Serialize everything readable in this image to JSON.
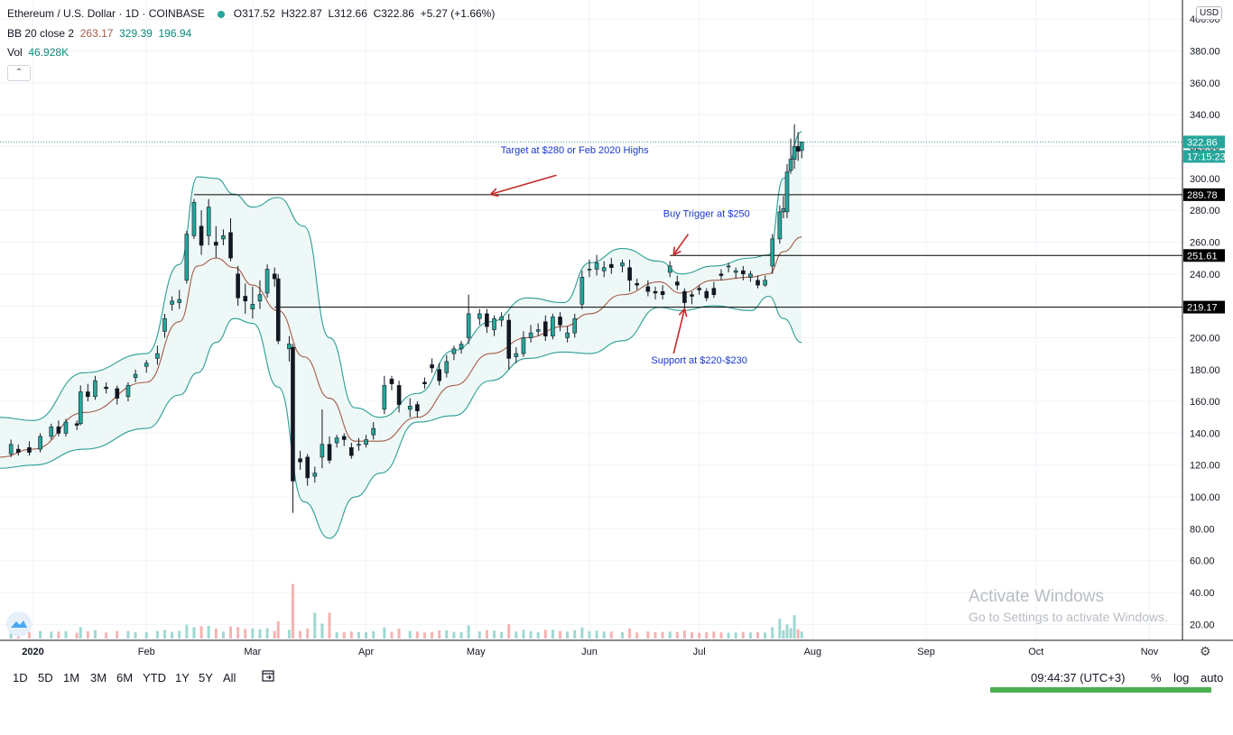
{
  "legend": {
    "symbol": "Ethereum / U.S. Dollar · 1D · COINBASE",
    "open": "O317.52",
    "high": "H322.87",
    "low": "L312.66",
    "close": "C322.86",
    "change": "+5.27 (+1.66%)",
    "bb_label": "BB 20 close 2",
    "bb_values": [
      "263.17",
      "329.39",
      "196.94"
    ],
    "vol_label": "Vol",
    "vol_value": "46.928K"
  },
  "currency_button": "USD",
  "price_axis_ticks": [
    "20.00",
    "40.00",
    "60.00",
    "80.00",
    "100.00",
    "120.00",
    "140.00",
    "160.00",
    "180.00",
    "200.00",
    "220.00",
    "240.00",
    "260.00",
    "280.00",
    "300.00",
    "320.00",
    "340.00",
    "360.00",
    "380.00",
    "400.00"
  ],
  "time_axis_ticks": [
    "2020",
    "Feb",
    "Mar",
    "Apr",
    "May",
    "Jun",
    "Jul",
    "Aug",
    "Sep",
    "Oct",
    "Nov"
  ],
  "price_badges": [
    {
      "text": "322.86",
      "color": "#26a69a"
    },
    {
      "text": "17:15:23",
      "color": "#26a69a"
    },
    {
      "text": "289.78",
      "color": "#000000"
    },
    {
      "text": "251.61",
      "color": "#000000"
    },
    {
      "text": "219.17",
      "color": "#000000"
    }
  ],
  "annotations": [
    "Target at $280 or Feb 2020 Highs",
    "Buy Trigger at $250",
    "Support at $220-$230"
  ],
  "timeframes": [
    "1D",
    "5D",
    "1M",
    "3M",
    "6M",
    "YTD",
    "1Y",
    "5Y",
    "All"
  ],
  "clock": "09:44:37 (UTC+3)",
  "options": [
    "%",
    "log",
    "auto"
  ],
  "watermark": {
    "line1": "Activate Windows",
    "line2": "Go to Settings to activate Windows."
  },
  "colors": {
    "up": "#26a69a",
    "down": "#ef5350",
    "bb_band": "#2a9d94",
    "bb_basis": "#a65a4a",
    "bb_fill": "#eef8f7"
  },
  "chart_data": {
    "type": "candlestick",
    "title": "Ethereum / U.S. Dollar · 1D · COINBASE",
    "x_range": [
      "2019-12-23",
      "2020-11-10"
    ],
    "y_range": [
      10,
      412
    ],
    "horizontal_levels": [
      289.78,
      251.61,
      219.17
    ],
    "last_price": 322.86,
    "candles": [
      {
        "date": "2019-12-26",
        "open": 127,
        "close": 133,
        "high": 136,
        "low": 125
      },
      {
        "date": "2019-12-28",
        "open": 130,
        "close": 128,
        "high": 133,
        "low": 126
      },
      {
        "date": "2019-12-31",
        "open": 131,
        "close": 128,
        "high": 135,
        "low": 126
      },
      {
        "date": "2020-01-03",
        "open": 130,
        "close": 138,
        "high": 140,
        "low": 128
      },
      {
        "date": "2020-01-06",
        "open": 138,
        "close": 144,
        "high": 146,
        "low": 136
      },
      {
        "date": "2020-01-08",
        "open": 144,
        "close": 140,
        "high": 148,
        "low": 138
      },
      {
        "date": "2020-01-10",
        "open": 140,
        "close": 147,
        "high": 149,
        "low": 138
      },
      {
        "date": "2020-01-13",
        "open": 146,
        "close": 145,
        "high": 148,
        "low": 142
      },
      {
        "date": "2020-01-14",
        "open": 146,
        "close": 166,
        "high": 170,
        "low": 145
      },
      {
        "date": "2020-01-16",
        "open": 166,
        "close": 163,
        "high": 171,
        "low": 160
      },
      {
        "date": "2020-01-18",
        "open": 163,
        "close": 173,
        "high": 176,
        "low": 161
      },
      {
        "date": "2020-01-21",
        "open": 169,
        "close": 168,
        "high": 172,
        "low": 165
      },
      {
        "date": "2020-01-24",
        "open": 168,
        "close": 162,
        "high": 170,
        "low": 158
      },
      {
        "date": "2020-01-27",
        "open": 163,
        "close": 170,
        "high": 172,
        "low": 160
      },
      {
        "date": "2020-01-29",
        "open": 175,
        "close": 177,
        "high": 180,
        "low": 172
      },
      {
        "date": "2020-02-01",
        "open": 182,
        "close": 184,
        "high": 186,
        "low": 178
      },
      {
        "date": "2020-02-04",
        "open": 187,
        "close": 190,
        "high": 195,
        "low": 183
      },
      {
        "date": "2020-02-06",
        "open": 204,
        "close": 212,
        "high": 215,
        "low": 200
      },
      {
        "date": "2020-02-08",
        "open": 221,
        "close": 223,
        "high": 226,
        "low": 217
      },
      {
        "date": "2020-02-10",
        "open": 222,
        "close": 224,
        "high": 230,
        "low": 218
      },
      {
        "date": "2020-02-12",
        "open": 236,
        "close": 265,
        "high": 267,
        "low": 234
      },
      {
        "date": "2020-02-14",
        "open": 264,
        "close": 285,
        "high": 287,
        "low": 262
      },
      {
        "date": "2020-02-16",
        "open": 270,
        "close": 258,
        "high": 280,
        "low": 252
      },
      {
        "date": "2020-02-18",
        "open": 264,
        "close": 282,
        "high": 287,
        "low": 258
      },
      {
        "date": "2020-02-20",
        "open": 260,
        "close": 258,
        "high": 270,
        "low": 250
      },
      {
        "date": "2020-02-22",
        "open": 262,
        "close": 264,
        "high": 268,
        "low": 258
      },
      {
        "date": "2020-02-24",
        "open": 266,
        "close": 250,
        "high": 275,
        "low": 248
      },
      {
        "date": "2020-02-26",
        "open": 240,
        "close": 225,
        "high": 245,
        "low": 220
      },
      {
        "date": "2020-02-28",
        "open": 226,
        "close": 223,
        "high": 234,
        "low": 215
      },
      {
        "date": "2020-03-01",
        "open": 218,
        "close": 221,
        "high": 232,
        "low": 212
      },
      {
        "date": "2020-03-03",
        "open": 223,
        "close": 227,
        "high": 236,
        "low": 218
      },
      {
        "date": "2020-03-05",
        "open": 228,
        "close": 243,
        "high": 246,
        "low": 225
      },
      {
        "date": "2020-03-07",
        "open": 240,
        "close": 237,
        "high": 244,
        "low": 232
      },
      {
        "date": "2020-03-08",
        "open": 237,
        "close": 198,
        "high": 240,
        "low": 196
      },
      {
        "date": "2020-03-11",
        "open": 193,
        "close": 196,
        "high": 201,
        "low": 185
      },
      {
        "date": "2020-03-12",
        "open": 194,
        "close": 110,
        "high": 196,
        "low": 90
      },
      {
        "date": "2020-03-14",
        "open": 124,
        "close": 122,
        "high": 129,
        "low": 117
      },
      {
        "date": "2020-03-16",
        "open": 125,
        "close": 112,
        "high": 127,
        "low": 107
      },
      {
        "date": "2020-03-18",
        "open": 113,
        "close": 115,
        "high": 119,
        "low": 109
      },
      {
        "date": "2020-03-20",
        "open": 125,
        "close": 133,
        "high": 155,
        "low": 118
      },
      {
        "date": "2020-03-22",
        "open": 133,
        "close": 123,
        "high": 138,
        "low": 121
      },
      {
        "date": "2020-03-24",
        "open": 134,
        "close": 137,
        "high": 139,
        "low": 131
      },
      {
        "date": "2020-03-26",
        "open": 138,
        "close": 136,
        "high": 140,
        "low": 132
      },
      {
        "date": "2020-03-28",
        "open": 131,
        "close": 126,
        "high": 134,
        "low": 124
      },
      {
        "date": "2020-03-30",
        "open": 133,
        "close": 133,
        "high": 137,
        "low": 129
      },
      {
        "date": "2020-04-01",
        "open": 133,
        "close": 136,
        "high": 139,
        "low": 131
      },
      {
        "date": "2020-04-03",
        "open": 139,
        "close": 143,
        "high": 147,
        "low": 136
      },
      {
        "date": "2020-04-06",
        "open": 155,
        "close": 170,
        "high": 176,
        "low": 152
      },
      {
        "date": "2020-04-08",
        "open": 174,
        "close": 171,
        "high": 176,
        "low": 167
      },
      {
        "date": "2020-04-10",
        "open": 170,
        "close": 158,
        "high": 173,
        "low": 153
      },
      {
        "date": "2020-04-13",
        "open": 155,
        "close": 157,
        "high": 162,
        "low": 150
      },
      {
        "date": "2020-04-15",
        "open": 158,
        "close": 154,
        "high": 160,
        "low": 150
      },
      {
        "date": "2020-04-17",
        "open": 172,
        "close": 171,
        "high": 175,
        "low": 168
      },
      {
        "date": "2020-04-19",
        "open": 183,
        "close": 181,
        "high": 187,
        "low": 178
      },
      {
        "date": "2020-04-21",
        "open": 180,
        "close": 173,
        "high": 184,
        "low": 170
      },
      {
        "date": "2020-04-23",
        "open": 178,
        "close": 185,
        "high": 189,
        "low": 175
      },
      {
        "date": "2020-04-25",
        "open": 190,
        "close": 193,
        "high": 195,
        "low": 186
      },
      {
        "date": "2020-04-27",
        "open": 193,
        "close": 196,
        "high": 198,
        "low": 190
      },
      {
        "date": "2020-04-29",
        "open": 200,
        "close": 215,
        "high": 227,
        "low": 196
      },
      {
        "date": "2020-05-02",
        "open": 212,
        "close": 215,
        "high": 218,
        "low": 208
      },
      {
        "date": "2020-05-04",
        "open": 215,
        "close": 207,
        "high": 218,
        "low": 203
      },
      {
        "date": "2020-05-06",
        "open": 205,
        "close": 212,
        "high": 214,
        "low": 201
      },
      {
        "date": "2020-05-08",
        "open": 211,
        "close": 213,
        "high": 216,
        "low": 207
      },
      {
        "date": "2020-05-10",
        "open": 211,
        "close": 187,
        "high": 215,
        "low": 180
      },
      {
        "date": "2020-05-12",
        "open": 188,
        "close": 190,
        "high": 194,
        "low": 184
      },
      {
        "date": "2020-05-14",
        "open": 190,
        "close": 200,
        "high": 204,
        "low": 188
      },
      {
        "date": "2020-05-16",
        "open": 200,
        "close": 203,
        "high": 208,
        "low": 197
      },
      {
        "date": "2020-05-18",
        "open": 204,
        "close": 205,
        "high": 209,
        "low": 201
      },
      {
        "date": "2020-05-20",
        "open": 210,
        "close": 201,
        "high": 214,
        "low": 198
      },
      {
        "date": "2020-05-22",
        "open": 201,
        "close": 213,
        "high": 215,
        "low": 199
      },
      {
        "date": "2020-05-24",
        "open": 213,
        "close": 208,
        "high": 216,
        "low": 204
      },
      {
        "date": "2020-05-26",
        "open": 200,
        "close": 203,
        "high": 207,
        "low": 197
      },
      {
        "date": "2020-05-28",
        "open": 203,
        "close": 212,
        "high": 215,
        "low": 200
      },
      {
        "date": "2020-05-30",
        "open": 221,
        "close": 238,
        "high": 242,
        "low": 218
      },
      {
        "date": "2020-06-01",
        "open": 243,
        "close": 243,
        "high": 249,
        "low": 238
      },
      {
        "date": "2020-06-03",
        "open": 243,
        "close": 247,
        "high": 252,
        "low": 239
      },
      {
        "date": "2020-06-05",
        "open": 242,
        "close": 244,
        "high": 248,
        "low": 238
      },
      {
        "date": "2020-06-07",
        "open": 246,
        "close": 244,
        "high": 250,
        "low": 240
      },
      {
        "date": "2020-06-10",
        "open": 245,
        "close": 247,
        "high": 249,
        "low": 241
      },
      {
        "date": "2020-06-12",
        "open": 244,
        "close": 236,
        "high": 249,
        "low": 229
      },
      {
        "date": "2020-06-14",
        "open": 234,
        "close": 233,
        "high": 237,
        "low": 230
      },
      {
        "date": "2020-06-17",
        "open": 232,
        "close": 229,
        "high": 236,
        "low": 226
      },
      {
        "date": "2020-06-19",
        "open": 229,
        "close": 228,
        "high": 232,
        "low": 224
      },
      {
        "date": "2020-06-21",
        "open": 229,
        "close": 227,
        "high": 233,
        "low": 224
      },
      {
        "date": "2020-06-23",
        "open": 241,
        "close": 245,
        "high": 248,
        "low": 238
      },
      {
        "date": "2020-06-25",
        "open": 235,
        "close": 233,
        "high": 239,
        "low": 230
      },
      {
        "date": "2020-06-27",
        "open": 229,
        "close": 222,
        "high": 231,
        "low": 218
      },
      {
        "date": "2020-06-29",
        "open": 227,
        "close": 226,
        "high": 229,
        "low": 221
      },
      {
        "date": "2020-07-01",
        "open": 231,
        "close": 230,
        "high": 233,
        "low": 227
      },
      {
        "date": "2020-07-03",
        "open": 229,
        "close": 225,
        "high": 231,
        "low": 223
      },
      {
        "date": "2020-07-05",
        "open": 231,
        "close": 227,
        "high": 235,
        "low": 225
      },
      {
        "date": "2020-07-07",
        "open": 240,
        "close": 239,
        "high": 243,
        "low": 236
      },
      {
        "date": "2020-07-09",
        "open": 245,
        "close": 245,
        "high": 247,
        "low": 241
      },
      {
        "date": "2020-07-11",
        "open": 241,
        "close": 242,
        "high": 244,
        "low": 237
      },
      {
        "date": "2020-07-13",
        "open": 242,
        "close": 240,
        "high": 245,
        "low": 236
      },
      {
        "date": "2020-07-15",
        "open": 238,
        "close": 240,
        "high": 242,
        "low": 235
      },
      {
        "date": "2020-07-17",
        "open": 236,
        "close": 233,
        "high": 239,
        "low": 231
      },
      {
        "date": "2020-07-19",
        "open": 233,
        "close": 236,
        "high": 239,
        "low": 232
      },
      {
        "date": "2020-07-21",
        "open": 245,
        "close": 262,
        "high": 265,
        "low": 240
      },
      {
        "date": "2020-07-23",
        "open": 262,
        "close": 279,
        "high": 283,
        "low": 259
      },
      {
        "date": "2020-07-24",
        "open": 279,
        "close": 281,
        "high": 289,
        "low": 275
      },
      {
        "date": "2020-07-25",
        "open": 279,
        "close": 304,
        "high": 309,
        "low": 275
      },
      {
        "date": "2020-07-26",
        "open": 305,
        "close": 312,
        "high": 325,
        "low": 303
      },
      {
        "date": "2020-07-27",
        "open": 312,
        "close": 320,
        "high": 334,
        "low": 306
      },
      {
        "date": "2020-07-28",
        "open": 320,
        "close": 317,
        "high": 329,
        "low": 311
      },
      {
        "date": "2020-07-29",
        "open": 317.52,
        "close": 322.86,
        "high": 322.87,
        "low": 312.66
      }
    ],
    "bollinger": {
      "period": 20,
      "std": 2,
      "last": {
        "basis": 263.17,
        "upper": 329.39,
        "lower": 196.94
      },
      "dates": [
        "2019-12-23",
        "2020-01-01",
        "2020-01-15",
        "2020-02-01",
        "2020-02-10",
        "2020-02-15",
        "2020-02-20",
        "2020-02-25",
        "2020-03-01",
        "2020-03-08",
        "2020-03-15",
        "2020-03-22",
        "2020-03-29",
        "2020-04-05",
        "2020-04-15",
        "2020-04-25",
        "2020-05-05",
        "2020-05-15",
        "2020-05-25",
        "2020-06-01",
        "2020-06-10",
        "2020-06-20",
        "2020-06-26",
        "2020-07-05",
        "2020-07-15",
        "2020-07-20",
        "2020-07-24",
        "2020-07-29"
      ],
      "upper": [
        150,
        148,
        178,
        190,
        246,
        301,
        300,
        290,
        282,
        288,
        270,
        200,
        156,
        150,
        165,
        192,
        210,
        225,
        222,
        247,
        256,
        248,
        240,
        245,
        250,
        252,
        300,
        329.39
      ],
      "basis": [
        125,
        130,
        153,
        172,
        210,
        245,
        250,
        244,
        233,
        217,
        188,
        162,
        135,
        135,
        150,
        170,
        190,
        200,
        207,
        215,
        227,
        235,
        228,
        236,
        238,
        240,
        254,
        263.17
      ],
      "lower": [
        118,
        120,
        130,
        143,
        164,
        178,
        197,
        212,
        209,
        169,
        97,
        74,
        100,
        115,
        147,
        151,
        173,
        187,
        191,
        190,
        198,
        219,
        217,
        220,
        217,
        226,
        212,
        196.94
      ]
    },
    "volume": {
      "label": "Vol",
      "last": "46.928K",
      "unit": "K",
      "dates": [
        "2020-03-12",
        "2020-03-13",
        "2020-03-18",
        "2020-03-22",
        "2020-04-20",
        "2020-05-07",
        "2020-05-11",
        "2020-07-23",
        "2020-07-27"
      ],
      "values": [
        110,
        60,
        52,
        52,
        51,
        42,
        52,
        40,
        47
      ]
    }
  }
}
